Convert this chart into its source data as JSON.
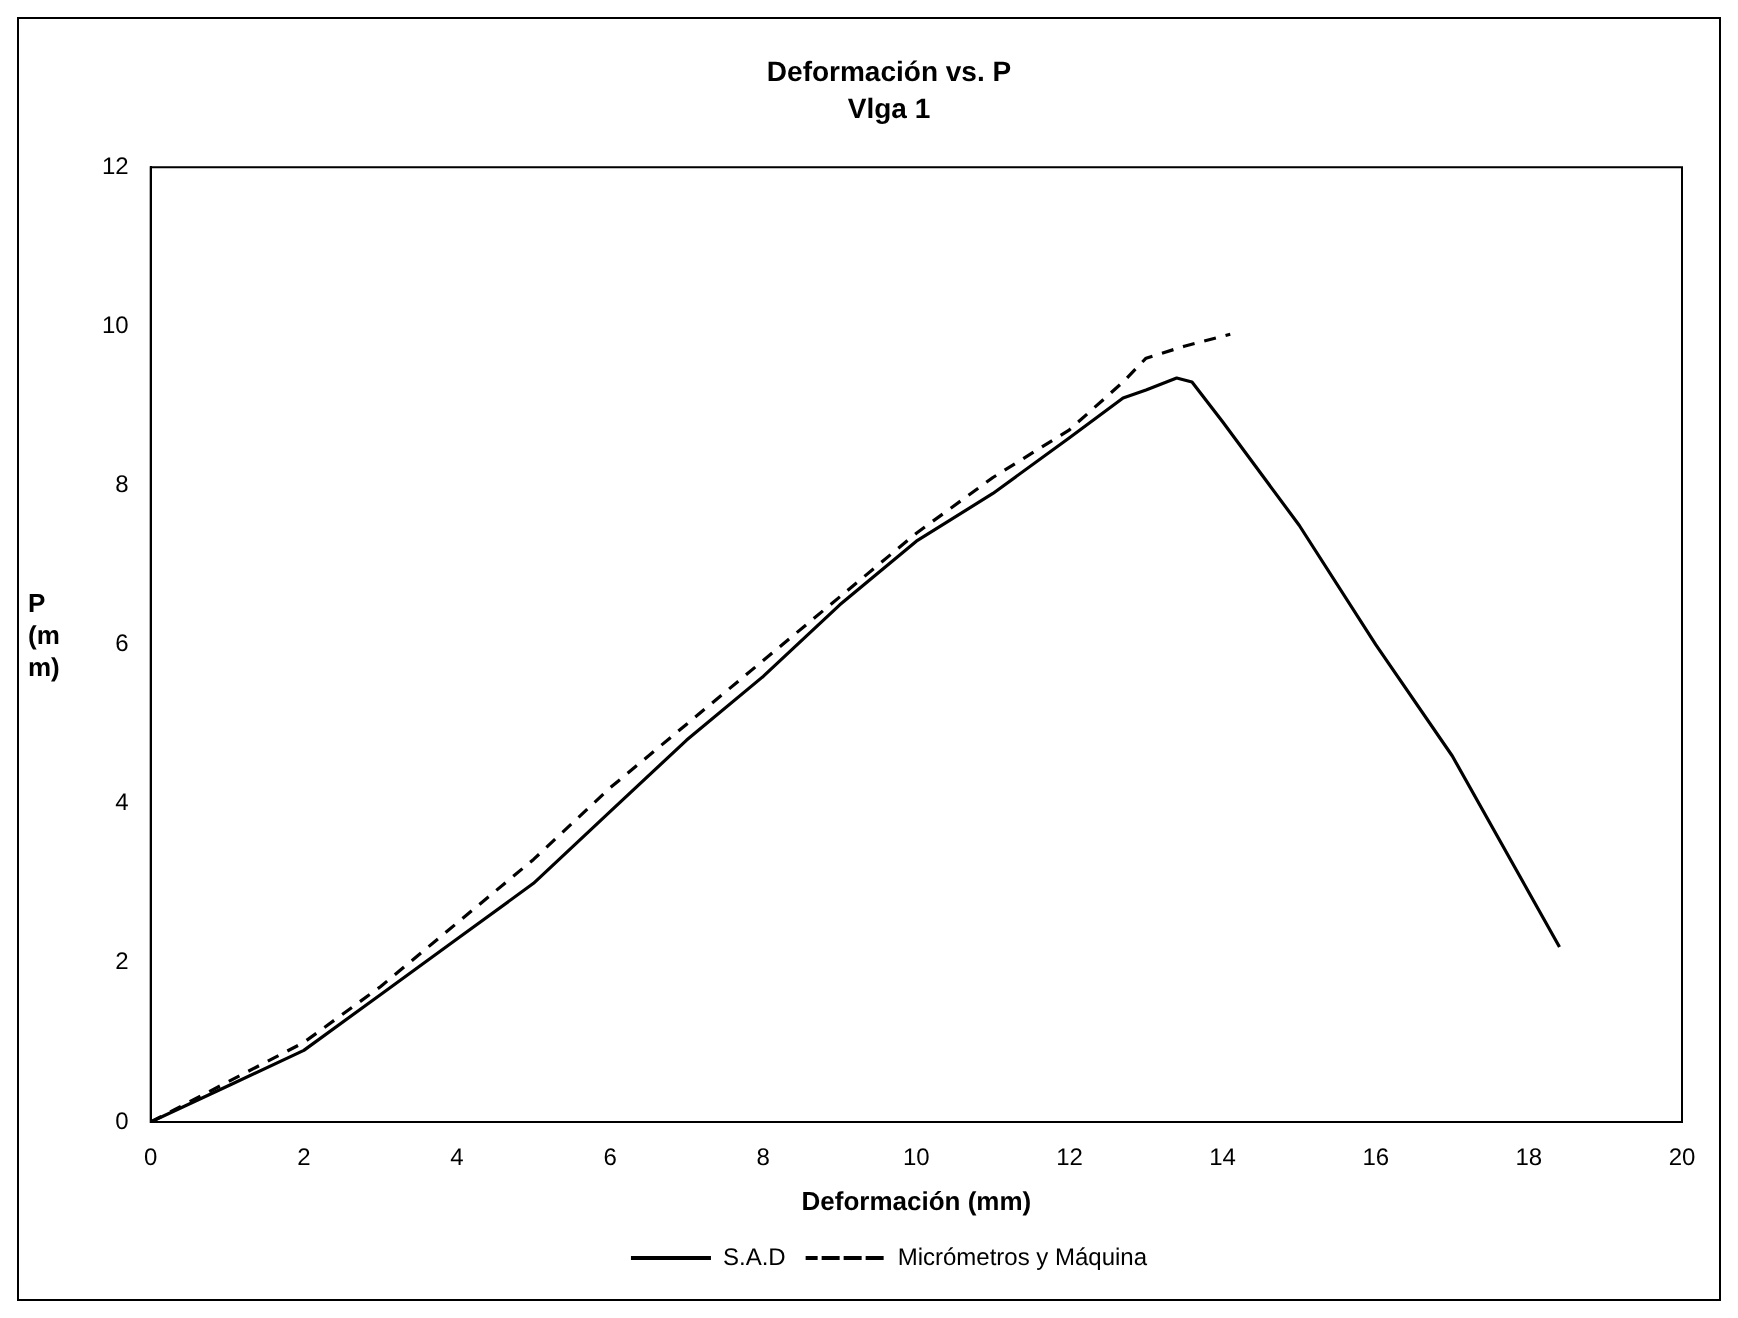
{
  "chart_data": {
    "type": "line",
    "title": "Deformación vs. P",
    "subtitle": "Vlga 1",
    "xlabel": "Deformación (mm)",
    "ylabel": "P (mm)",
    "xlim": [
      0,
      20
    ],
    "xticks": [
      0,
      2,
      4,
      6,
      8,
      10,
      12,
      14,
      16,
      18,
      20
    ],
    "ylim": [
      0,
      12
    ],
    "yticks": [
      0,
      2,
      4,
      6,
      8,
      10,
      12
    ],
    "grid": false,
    "legend": "bottom",
    "marker": "none",
    "series": [
      {
        "name": "S.A.D",
        "color": "#000000",
        "line_style": "solid",
        "x": [
          0,
          1,
          2,
          3,
          4,
          5,
          6,
          7,
          8,
          9,
          10,
          11,
          12,
          12.7,
          13,
          13.4,
          13.6,
          14,
          15,
          16,
          17,
          18.4
        ],
        "values": [
          0,
          0.45,
          0.9,
          1.6,
          2.3,
          3.0,
          3.9,
          4.8,
          5.6,
          6.5,
          7.3,
          7.9,
          8.6,
          9.1,
          9.2,
          9.35,
          9.3,
          8.8,
          7.5,
          6.0,
          4.6,
          2.2
        ]
      },
      {
        "name": "Micrómetros y Máquina",
        "color": "#000000",
        "line_style": "dashed",
        "x": [
          0,
          1,
          2,
          3,
          4,
          5,
          6,
          7,
          8,
          9,
          10,
          11,
          12,
          12.7,
          13,
          13.5,
          14.1
        ],
        "values": [
          0,
          0.5,
          1.0,
          1.7,
          2.5,
          3.3,
          4.2,
          5.0,
          5.8,
          6.6,
          7.4,
          8.1,
          8.7,
          9.3,
          9.6,
          9.75,
          9.9
        ]
      }
    ]
  }
}
